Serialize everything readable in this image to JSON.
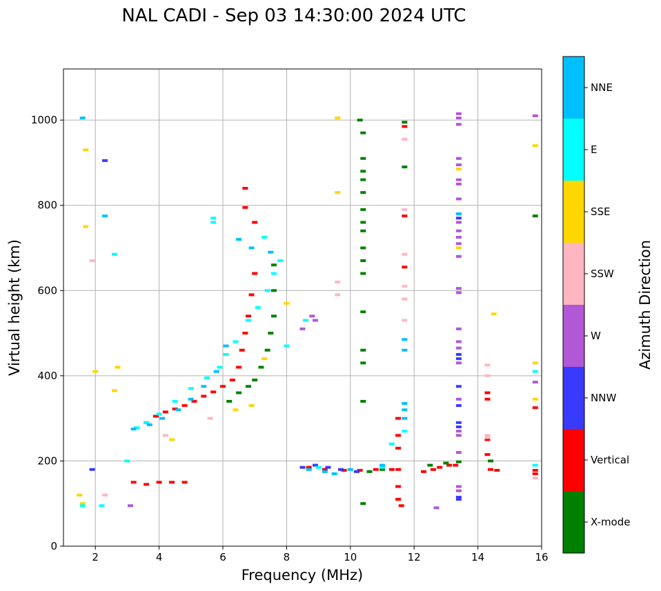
{
  "chart_data": {
    "type": "scatter",
    "title": "NAL CADI - Sep 03 14:30:00 2024 UTC",
    "xlabel": "Frequency (MHz)",
    "ylabel": "Virtual height (km)",
    "xlim": [
      1,
      16
    ],
    "ylim": [
      0,
      1120
    ],
    "xticks": [
      2,
      4,
      6,
      8,
      10,
      12,
      14,
      16
    ],
    "yticks": [
      0,
      200,
      400,
      600,
      800,
      1000
    ],
    "grid": true,
    "colorbar": {
      "label": "Azimuth Direction",
      "categories": [
        {
          "name": "X-mode",
          "color": "#008000"
        },
        {
          "name": "Vertical",
          "color": "#ff0000"
        },
        {
          "name": "NNW",
          "color": "#3a3aff"
        },
        {
          "name": "W",
          "color": "#b257d6"
        },
        {
          "name": "SSW",
          "color": "#ffb6c1"
        },
        {
          "name": "SSE",
          "color": "#ffd700"
        },
        {
          "name": "E",
          "color": "#00ffff"
        },
        {
          "name": "NNE",
          "color": "#00bfff"
        }
      ]
    },
    "series": [
      {
        "name": "Vertical",
        "points": [
          [
            3.2,
            150
          ],
          [
            3.6,
            145
          ],
          [
            4.0,
            150
          ],
          [
            4.4,
            150
          ],
          [
            4.8,
            150
          ],
          [
            3.6,
            290
          ],
          [
            3.9,
            305
          ],
          [
            4.2,
            315
          ],
          [
            4.5,
            322
          ],
          [
            4.8,
            330
          ],
          [
            5.1,
            340
          ],
          [
            5.4,
            352
          ],
          [
            5.7,
            362
          ],
          [
            6.0,
            375
          ],
          [
            6.3,
            390
          ],
          [
            6.5,
            420
          ],
          [
            6.6,
            460
          ],
          [
            6.7,
            500
          ],
          [
            6.8,
            540
          ],
          [
            6.9,
            590
          ],
          [
            7.0,
            640
          ],
          [
            6.7,
            840
          ],
          [
            6.7,
            795
          ],
          [
            7.0,
            760
          ],
          [
            8.7,
            185
          ],
          [
            9.2,
            180
          ],
          [
            9.8,
            178
          ],
          [
            10.3,
            178
          ],
          [
            10.8,
            180
          ],
          [
            11.3,
            180
          ],
          [
            11.5,
            180
          ],
          [
            11.5,
            300
          ],
          [
            11.5,
            260
          ],
          [
            11.5,
            230
          ],
          [
            11.5,
            140
          ],
          [
            11.5,
            110
          ],
          [
            11.6,
            95
          ],
          [
            11.7,
            775
          ],
          [
            11.7,
            655
          ],
          [
            11.7,
            985
          ],
          [
            12.3,
            175
          ],
          [
            12.6,
            180
          ],
          [
            12.8,
            185
          ],
          [
            13.1,
            190
          ],
          [
            13.3,
            190
          ],
          [
            14.3,
            360
          ],
          [
            14.3,
            345
          ],
          [
            14.3,
            250
          ],
          [
            14.3,
            215
          ],
          [
            14.4,
            180
          ],
          [
            14.6,
            178
          ],
          [
            15.8,
            178
          ],
          [
            15.8,
            170
          ],
          [
            15.8,
            325
          ]
        ]
      },
      {
        "name": "X-mode",
        "points": [
          [
            6.2,
            340
          ],
          [
            6.5,
            360
          ],
          [
            6.8,
            375
          ],
          [
            7.0,
            390
          ],
          [
            7.2,
            420
          ],
          [
            7.4,
            460
          ],
          [
            7.5,
            500
          ],
          [
            7.6,
            540
          ],
          [
            7.6,
            600
          ],
          [
            7.6,
            660
          ],
          [
            10.3,
            1000
          ],
          [
            10.4,
            970
          ],
          [
            10.4,
            910
          ],
          [
            10.4,
            880
          ],
          [
            10.4,
            860
          ],
          [
            10.4,
            830
          ],
          [
            10.4,
            790
          ],
          [
            10.4,
            760
          ],
          [
            10.4,
            740
          ],
          [
            10.4,
            700
          ],
          [
            10.4,
            670
          ],
          [
            10.4,
            640
          ],
          [
            10.4,
            550
          ],
          [
            10.4,
            460
          ],
          [
            10.4,
            430
          ],
          [
            10.4,
            340
          ],
          [
            10.4,
            100
          ],
          [
            10.6,
            175
          ],
          [
            11.0,
            180
          ],
          [
            11.7,
            995
          ],
          [
            11.7,
            890
          ],
          [
            12.5,
            190
          ],
          [
            13.0,
            195
          ],
          [
            13.4,
            198
          ],
          [
            14.4,
            200
          ],
          [
            15.8,
            775
          ]
        ]
      },
      {
        "name": "NNW",
        "points": [
          [
            1.9,
            180
          ],
          [
            8.5,
            185
          ],
          [
            8.9,
            190
          ],
          [
            9.3,
            185
          ],
          [
            9.7,
            180
          ],
          [
            10.2,
            175
          ],
          [
            13.4,
            780
          ],
          [
            13.4,
            770
          ],
          [
            13.4,
            450
          ],
          [
            13.4,
            440
          ],
          [
            13.4,
            375
          ],
          [
            13.4,
            330
          ],
          [
            13.4,
            290
          ],
          [
            13.4,
            280
          ],
          [
            13.4,
            115
          ],
          [
            13.4,
            110
          ],
          [
            2.3,
            905
          ]
        ]
      },
      {
        "name": "W",
        "points": [
          [
            3.1,
            95
          ],
          [
            8.8,
            540
          ],
          [
            8.9,
            530
          ],
          [
            8.5,
            510
          ],
          [
            13.4,
            1015
          ],
          [
            13.4,
            1005
          ],
          [
            13.4,
            990
          ],
          [
            13.4,
            910
          ],
          [
            13.4,
            895
          ],
          [
            13.4,
            860
          ],
          [
            13.4,
            850
          ],
          [
            13.4,
            815
          ],
          [
            13.4,
            780
          ],
          [
            13.4,
            760
          ],
          [
            13.4,
            740
          ],
          [
            13.4,
            725
          ],
          [
            13.4,
            710
          ],
          [
            13.4,
            680
          ],
          [
            13.4,
            605
          ],
          [
            13.4,
            595
          ],
          [
            13.4,
            510
          ],
          [
            13.4,
            480
          ],
          [
            13.4,
            465
          ],
          [
            13.4,
            430
          ],
          [
            13.4,
            345
          ],
          [
            13.4,
            270
          ],
          [
            13.4,
            260
          ],
          [
            13.4,
            220
          ],
          [
            13.4,
            140
          ],
          [
            13.4,
            130
          ],
          [
            12.7,
            90
          ],
          [
            15.8,
            1010
          ],
          [
            15.8,
            385
          ]
        ]
      },
      {
        "name": "SSW",
        "points": [
          [
            1.9,
            670
          ],
          [
            2.3,
            120
          ],
          [
            4.2,
            260
          ],
          [
            5.6,
            300
          ],
          [
            9.6,
            620
          ],
          [
            9.6,
            590
          ],
          [
            11.7,
            955
          ],
          [
            11.7,
            790
          ],
          [
            11.7,
            685
          ],
          [
            11.7,
            610
          ],
          [
            11.7,
            580
          ],
          [
            11.7,
            530
          ],
          [
            14.3,
            425
          ],
          [
            14.3,
            400
          ],
          [
            14.3,
            260
          ],
          [
            14.3,
            255
          ],
          [
            15.8,
            160
          ]
        ]
      },
      {
        "name": "SSE",
        "points": [
          [
            1.5,
            120
          ],
          [
            1.6,
            100
          ],
          [
            1.7,
            930
          ],
          [
            1.7,
            750
          ],
          [
            2.0,
            410
          ],
          [
            2.6,
            365
          ],
          [
            2.7,
            420
          ],
          [
            4.4,
            250
          ],
          [
            6.4,
            320
          ],
          [
            6.9,
            330
          ],
          [
            7.3,
            440
          ],
          [
            8.0,
            570
          ],
          [
            9.6,
            1005
          ],
          [
            9.6,
            830
          ],
          [
            13.4,
            885
          ],
          [
            13.4,
            700
          ],
          [
            14.5,
            545
          ],
          [
            15.8,
            940
          ],
          [
            15.8,
            430
          ],
          [
            15.8,
            345
          ]
        ]
      },
      {
        "name": "E",
        "points": [
          [
            1.6,
            95
          ],
          [
            2.2,
            95
          ],
          [
            2.6,
            685
          ],
          [
            3.0,
            200
          ],
          [
            3.3,
            278
          ],
          [
            3.6,
            290
          ],
          [
            4.0,
            310
          ],
          [
            4.5,
            340
          ],
          [
            5.0,
            370
          ],
          [
            5.5,
            395
          ],
          [
            5.9,
            420
          ],
          [
            6.1,
            450
          ],
          [
            6.4,
            480
          ],
          [
            6.8,
            530
          ],
          [
            7.1,
            560
          ],
          [
            7.4,
            600
          ],
          [
            7.6,
            640
          ],
          [
            7.8,
            670
          ],
          [
            5.7,
            770
          ],
          [
            5.7,
            760
          ],
          [
            7.3,
            725
          ],
          [
            8.0,
            470
          ],
          [
            8.6,
            530
          ],
          [
            9.0,
            185
          ],
          [
            11.0,
            185
          ],
          [
            11.3,
            240
          ],
          [
            11.7,
            270
          ],
          [
            15.8,
            410
          ],
          [
            15.8,
            190
          ]
        ]
      },
      {
        "name": "NNE",
        "points": [
          [
            1.6,
            1005
          ],
          [
            2.3,
            775
          ],
          [
            3.2,
            275
          ],
          [
            3.7,
            285
          ],
          [
            4.1,
            300
          ],
          [
            4.6,
            320
          ],
          [
            5.0,
            345
          ],
          [
            5.4,
            375
          ],
          [
            5.8,
            410
          ],
          [
            6.1,
            470
          ],
          [
            6.5,
            720
          ],
          [
            6.9,
            700
          ],
          [
            7.5,
            690
          ],
          [
            8.7,
            180
          ],
          [
            9.2,
            175
          ],
          [
            9.5,
            170
          ],
          [
            10.0,
            180
          ],
          [
            11.0,
            190
          ],
          [
            11.7,
            300
          ],
          [
            11.7,
            320
          ],
          [
            11.7,
            335
          ],
          [
            11.7,
            485
          ],
          [
            11.7,
            460
          ],
          [
            13.4,
            780
          ]
        ]
      }
    ]
  }
}
